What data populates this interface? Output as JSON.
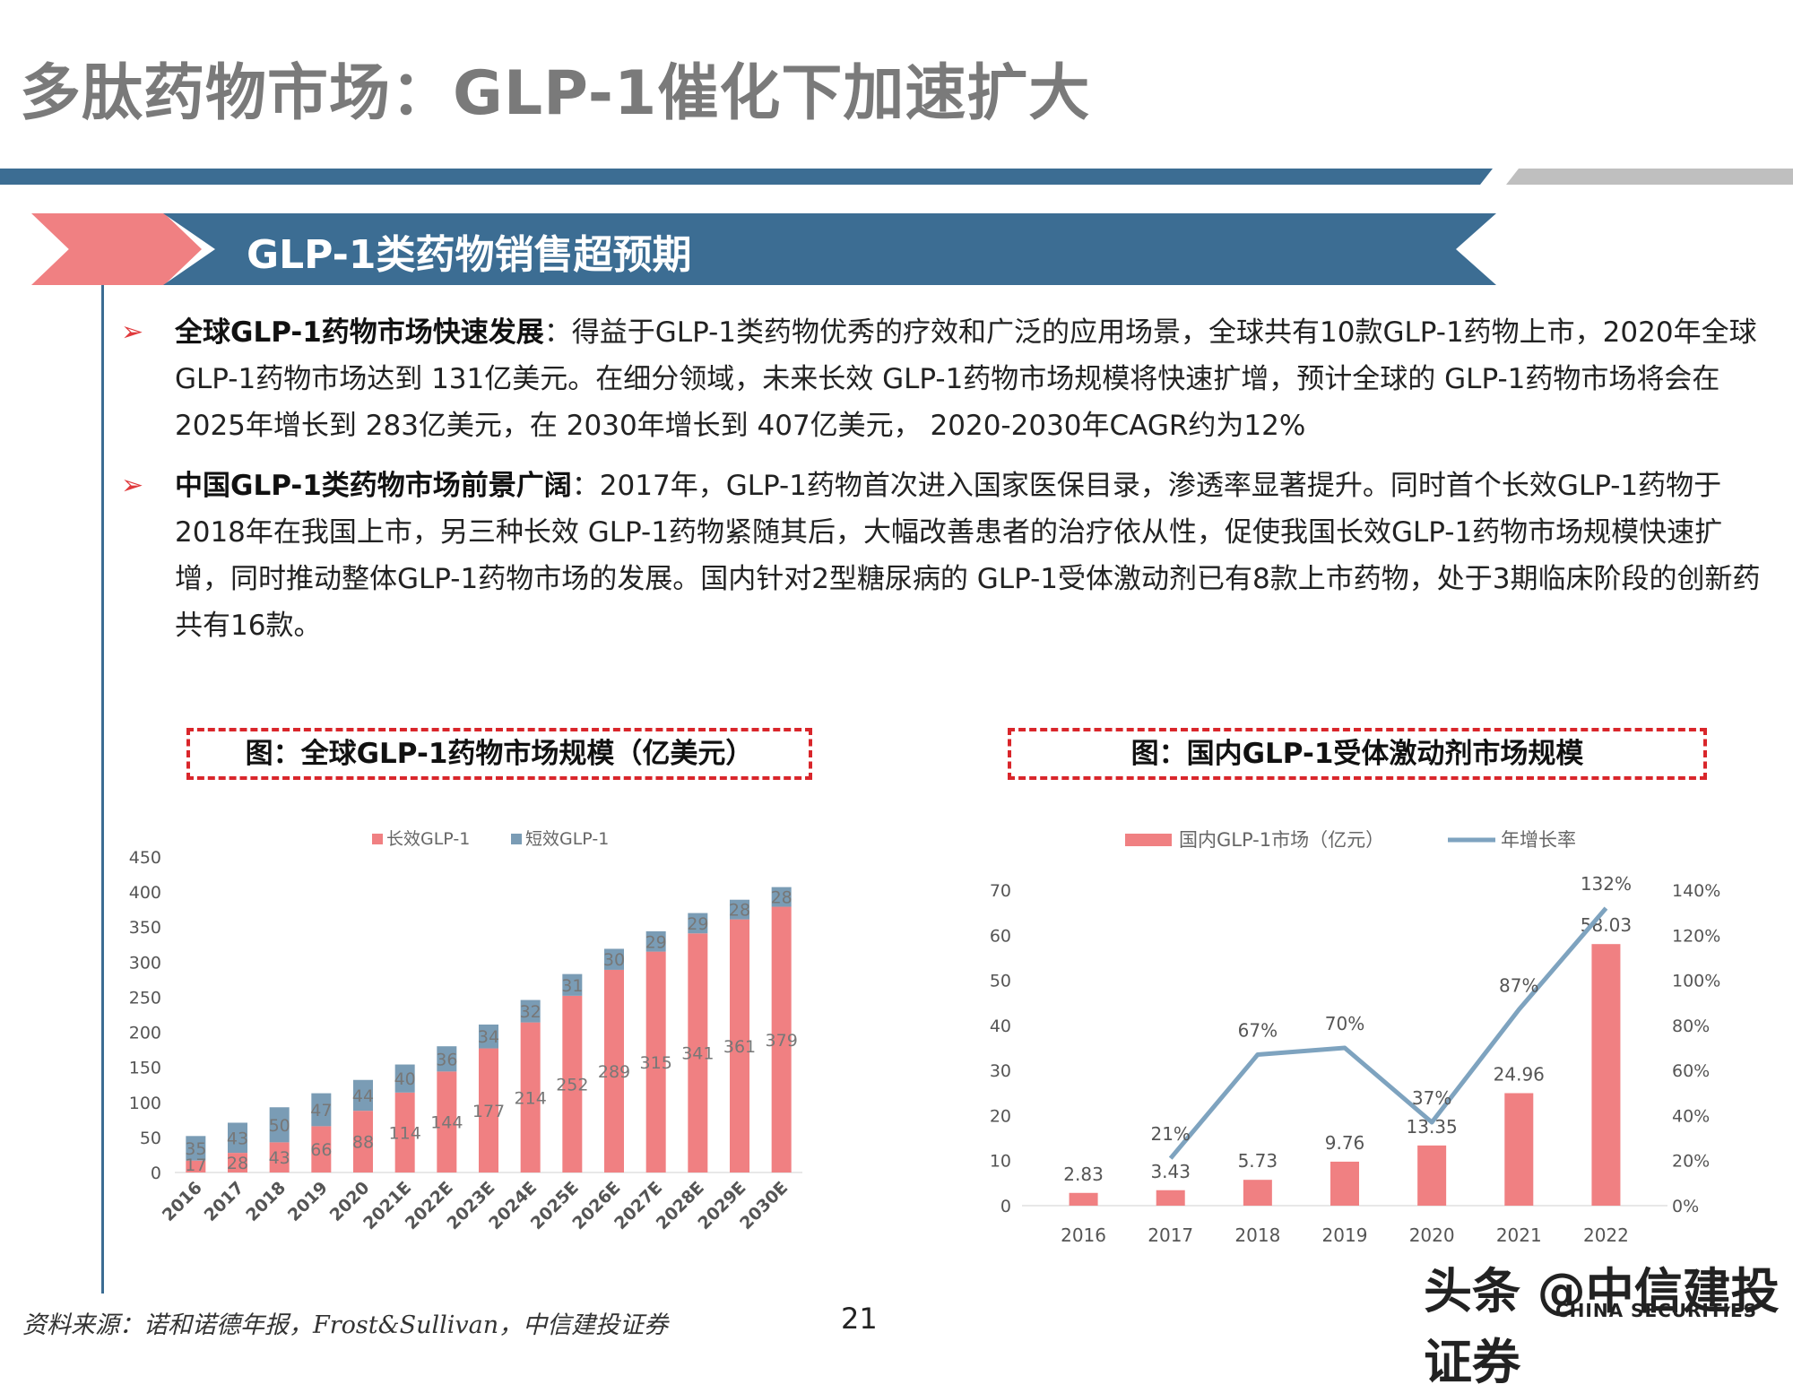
{
  "header": {
    "title": "多肽药物市场：GLP-1催化下加速扩大",
    "banner": "GLP-1类药物销售超预期"
  },
  "bullets": [
    {
      "heading": "全球GLP-1药物市场快速发展",
      "body": "：得益于GLP-1类药物优秀的疗效和广泛的应用场景，全球共有10款GLP-1药物上市，2020年全球 GLP-1药物市场达到 131亿美元。在细分领域，未来长效 GLP-1药物市场规模将快速扩增，预计全球的 GLP-1药物市场将会在 2025年增长到 283亿美元，在 2030年增长到 407亿美元， 2020-2030年CAGR约为12%"
    },
    {
      "heading": "中国GLP-1类药物市场前景广阔",
      "body": "：2017年，GLP-1药物首次进入国家医保目录，渗透率显著提升。同时首个长效GLP-1药物于2018年在我国上市，另三种长效 GLP-1药物紧随其后，大幅改善患者的治疗依从性，促使我国长效GLP-1药物市场规模快速扩增，同时推动整体GLP-1药物市场的发展。国内针对2型糖尿病的 GLP-1受体激动剂已有8款上市药物，处于3期临床阶段的创新药共有16款。"
    }
  ],
  "figures": {
    "left_title": "图：全球GLP-1药物市场规模（亿美元）",
    "right_title": "图：国内GLP-1受体激动剂市场规模"
  },
  "colors": {
    "pink": "#f08082",
    "blue": "#7a9cb5",
    "line_blue": "#7ea3bf"
  },
  "chart_data": [
    {
      "type": "bar",
      "stacked": true,
      "title": "图：全球GLP-1药物市场规模（亿美元）",
      "categories": [
        "2016",
        "2017",
        "2018",
        "2019",
        "2020",
        "2021E",
        "2022E",
        "2023E",
        "2024E",
        "2025E",
        "2026E",
        "2027E",
        "2028E",
        "2029E",
        "2030E"
      ],
      "series": [
        {
          "name": "长效GLP-1",
          "values": [
            17,
            28,
            43,
            66,
            88,
            114,
            144,
            177,
            214,
            252,
            289,
            315,
            341,
            361,
            379
          ]
        },
        {
          "name": "短效GLP-1",
          "values": [
            35,
            43,
            50,
            47,
            44,
            40,
            36,
            34,
            32,
            31,
            30,
            29,
            29,
            28,
            28
          ]
        }
      ],
      "ylim": [
        0,
        450
      ],
      "yticks": [
        "0",
        "50",
        "100",
        "150",
        "200",
        "250",
        "300",
        "350",
        "400",
        "450"
      ],
      "grid": false,
      "legend": "top"
    },
    {
      "type": "bar",
      "title": "图：国内GLP-1受体激动剂市场规模",
      "categories": [
        "2016",
        "2017",
        "2018",
        "2019",
        "2020",
        "2021",
        "2022"
      ],
      "series": [
        {
          "name": "国内GLP-1市场（亿元）",
          "type": "bar",
          "axis": "left",
          "values": [
            2.83,
            3.43,
            5.73,
            9.76,
            13.35,
            24.96,
            58.03
          ],
          "labels": [
            "2.83",
            "3.43",
            "5.73",
            "9.76",
            "13.35",
            "24.96",
            "58.03"
          ]
        },
        {
          "name": "年增长率",
          "type": "line",
          "axis": "right",
          "values": [
            null,
            21,
            67,
            70,
            37,
            87,
            132
          ],
          "labels": [
            "",
            "21%",
            "67%",
            "70%",
            "37%",
            "87%",
            "132%"
          ]
        }
      ],
      "ylim_left": [
        0,
        70
      ],
      "yticks_left": [
        "0",
        "10",
        "20",
        "30",
        "40",
        "50",
        "60",
        "70"
      ],
      "ylim_right": [
        0,
        140
      ],
      "yticks_right": [
        "0%",
        "20%",
        "40%",
        "60%",
        "80%",
        "100%",
        "120%",
        "140%"
      ],
      "grid": false,
      "legend": "top"
    }
  ],
  "footer": {
    "source": "资料来源：诺和诺德年报，Frost&Sullivan，中信建投证券",
    "page": "21",
    "watermark": "头条 @中信建投证券",
    "watermark_sub": "CHINA SECURITIES"
  }
}
